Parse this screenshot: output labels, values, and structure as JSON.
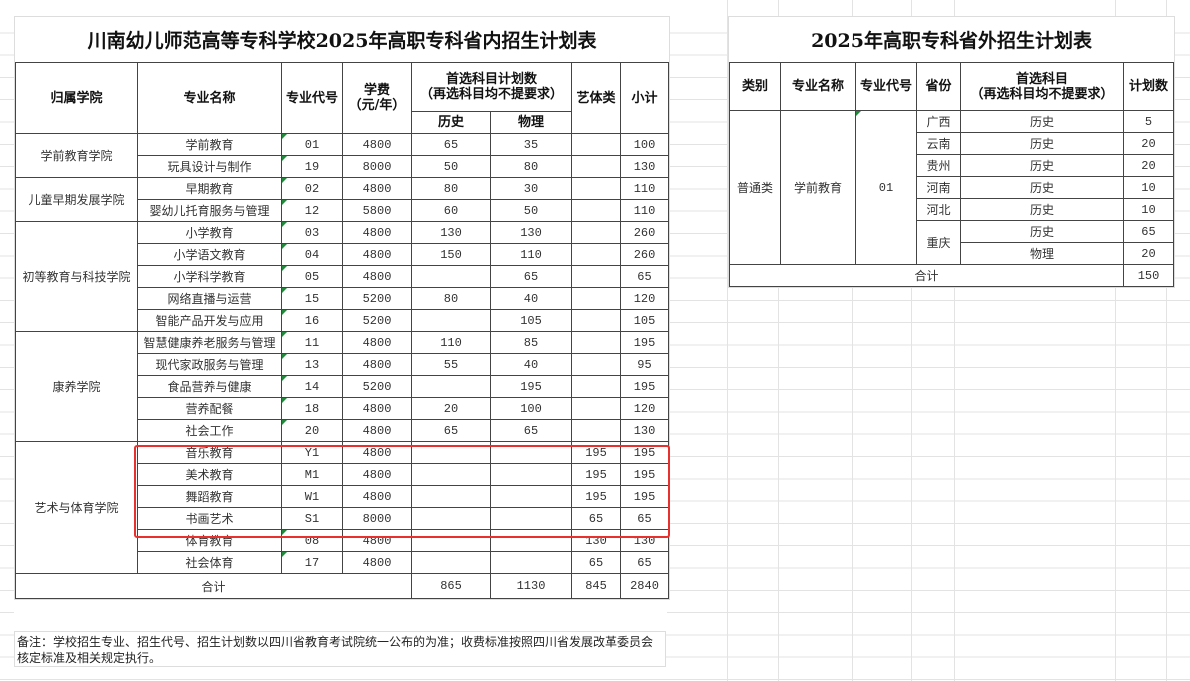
{
  "left_table": {
    "title": "川南幼儿师范高等专科学校2025年高职专科省内招生计划表",
    "headers": {
      "college": "归属学院",
      "major": "专业名称",
      "code": "专业代号",
      "fee": "学费\n（元/年）",
      "subject_plan": "首选科目计划数\n（再选科目均不提要求）",
      "history": "历史",
      "physics": "物理",
      "art": "艺体类",
      "subtotal": "小计"
    },
    "colleges": [
      {
        "name": "学前教育学院",
        "majors": [
          {
            "name": "学前教育",
            "code": "01",
            "fee": "4800",
            "history": "65",
            "physics": "35",
            "art": "",
            "subtotal": "100"
          },
          {
            "name": "玩具设计与制作",
            "code": "19",
            "fee": "8000",
            "history": "50",
            "physics": "80",
            "art": "",
            "subtotal": "130"
          }
        ]
      },
      {
        "name": "儿童早期发展学院",
        "majors": [
          {
            "name": "早期教育",
            "code": "02",
            "fee": "4800",
            "history": "80",
            "physics": "30",
            "art": "",
            "subtotal": "110"
          },
          {
            "name": "婴幼儿托育服务与管理",
            "code": "12",
            "fee": "5800",
            "history": "60",
            "physics": "50",
            "art": "",
            "subtotal": "110"
          }
        ]
      },
      {
        "name": "初等教育与科技学院",
        "majors": [
          {
            "name": "小学教育",
            "code": "03",
            "fee": "4800",
            "history": "130",
            "physics": "130",
            "art": "",
            "subtotal": "260"
          },
          {
            "name": "小学语文教育",
            "code": "04",
            "fee": "4800",
            "history": "150",
            "physics": "110",
            "art": "",
            "subtotal": "260"
          },
          {
            "name": "小学科学教育",
            "code": "05",
            "fee": "4800",
            "history": "",
            "physics": "65",
            "art": "",
            "subtotal": "65"
          },
          {
            "name": "网络直播与运营",
            "code": "15",
            "fee": "5200",
            "history": "80",
            "physics": "40",
            "art": "",
            "subtotal": "120"
          },
          {
            "name": "智能产品开发与应用",
            "code": "16",
            "fee": "5200",
            "history": "",
            "physics": "105",
            "art": "",
            "subtotal": "105"
          }
        ]
      },
      {
        "name": "康养学院",
        "majors": [
          {
            "name": "智慧健康养老服务与管理",
            "code": "11",
            "fee": "4800",
            "history": "110",
            "physics": "85",
            "art": "",
            "subtotal": "195"
          },
          {
            "name": "现代家政服务与管理",
            "code": "13",
            "fee": "4800",
            "history": "55",
            "physics": "40",
            "art": "",
            "subtotal": "95"
          },
          {
            "name": "食品营养与健康",
            "code": "14",
            "fee": "5200",
            "history": "",
            "physics": "195",
            "art": "",
            "subtotal": "195"
          },
          {
            "name": "营养配餐",
            "code": "18",
            "fee": "4800",
            "history": "20",
            "physics": "100",
            "art": "",
            "subtotal": "120"
          },
          {
            "name": "社会工作",
            "code": "20",
            "fee": "4800",
            "history": "65",
            "physics": "65",
            "art": "",
            "subtotal": "130"
          }
        ]
      },
      {
        "name": "艺术与体育学院",
        "majors": [
          {
            "name": "音乐教育",
            "code": "Y1",
            "fee": "4800",
            "history": "",
            "physics": "",
            "art": "195",
            "subtotal": "195",
            "highlight": true
          },
          {
            "name": "美术教育",
            "code": "M1",
            "fee": "4800",
            "history": "",
            "physics": "",
            "art": "195",
            "subtotal": "195",
            "highlight": true
          },
          {
            "name": "舞蹈教育",
            "code": "W1",
            "fee": "4800",
            "history": "",
            "physics": "",
            "art": "195",
            "subtotal": "195",
            "highlight": true
          },
          {
            "name": "书画艺术",
            "code": "S1",
            "fee": "8000",
            "history": "",
            "physics": "",
            "art": "65",
            "subtotal": "65",
            "highlight": true
          },
          {
            "name": "体育教育",
            "code": "08",
            "fee": "4800",
            "history": "",
            "physics": "",
            "art": "130",
            "subtotal": "130"
          },
          {
            "name": "社会体育",
            "code": "17",
            "fee": "4800",
            "history": "",
            "physics": "",
            "art": "65",
            "subtotal": "65"
          }
        ]
      }
    ],
    "total": {
      "label": "合计",
      "history": "865",
      "physics": "1130",
      "art": "845",
      "subtotal": "2840"
    },
    "note": "备注：学校招生专业、招生代号、招生计划数以四川省教育考试院统一公布的为准；收费标准按照四川省发展改革委员会核定标准及相关规定执行。"
  },
  "right_table": {
    "title": "2025年高职专科省外招生计划表",
    "headers": {
      "category": "类别",
      "major": "专业名称",
      "code": "专业代号",
      "province": "省份",
      "subject": "首选科目\n（再选科目均不提要求）",
      "plan": "计划数"
    },
    "category": "普通类",
    "major": "学前教育",
    "code": "01",
    "provinces": [
      {
        "name": "广西",
        "entries": [
          {
            "subject": "历史",
            "plan": "5"
          }
        ]
      },
      {
        "name": "云南",
        "entries": [
          {
            "subject": "历史",
            "plan": "20"
          }
        ]
      },
      {
        "name": "贵州",
        "entries": [
          {
            "subject": "历史",
            "plan": "20"
          }
        ]
      },
      {
        "name": "河南",
        "entries": [
          {
            "subject": "历史",
            "plan": "10"
          }
        ]
      },
      {
        "name": "河北",
        "entries": [
          {
            "subject": "历史",
            "plan": "10"
          }
        ]
      },
      {
        "name": "重庆",
        "entries": [
          {
            "subject": "历史",
            "plan": "65"
          },
          {
            "subject": "物理",
            "plan": "20"
          }
        ]
      }
    ],
    "total": {
      "label": "合计",
      "plan": "150"
    }
  },
  "colors": {
    "highlight_border": "#e8312f",
    "grid": "#e3e3e3",
    "cell_border": "#444444",
    "comment_marker": "#1e8a3a"
  }
}
